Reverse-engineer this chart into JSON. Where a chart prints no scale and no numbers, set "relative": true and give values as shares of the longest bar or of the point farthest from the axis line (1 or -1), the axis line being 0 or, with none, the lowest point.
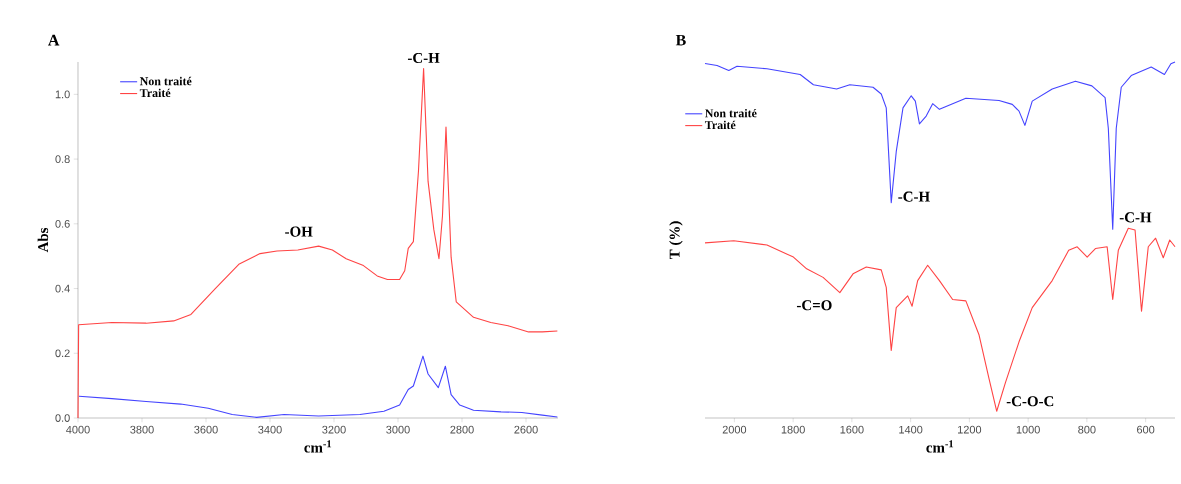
{
  "chart_data": [
    {
      "type": "line",
      "title": "A",
      "xlabel": "cm$^{-1}$",
      "ylabel": "Abs",
      "xlim": [
        4000,
        2500
      ],
      "ylim": [
        0,
        1.1
      ],
      "xticks": [
        4000,
        3800,
        3600,
        3400,
        3200,
        3000,
        2800,
        2600
      ],
      "yticks": [
        {
          "value": 0,
          "label": "0.0"
        },
        {
          "value": 0.2,
          "label": "0.2"
        },
        {
          "value": 0.4,
          "label": "0.4"
        },
        {
          "value": 0.6,
          "label": "0.6"
        },
        {
          "value": 0.8,
          "label": "0.8"
        },
        {
          "value": 1.0,
          "label": "1.0"
        }
      ],
      "legend": "top left",
      "series": [
        {
          "name": "Non traité",
          "color": "#4444ff",
          "x": [
            3997,
            3894,
            3787,
            3679,
            3593,
            3518,
            3442,
            3356,
            3248,
            3119,
            3044,
            2995,
            2968,
            2952,
            2922,
            2906,
            2874,
            2852,
            2834,
            2807,
            2764,
            2678,
            2613,
            2549,
            2502
          ],
          "values": [
            0.067,
            0.06,
            0.051,
            0.043,
            0.03,
            0.011,
            0.002,
            0.011,
            0.006,
            0.011,
            0.021,
            0.04,
            0.088,
            0.099,
            0.191,
            0.136,
            0.094,
            0.16,
            0.072,
            0.04,
            0.024,
            0.019,
            0.017,
            0.009,
            0.003
          ]
        },
        {
          "name": "Traité",
          "color": "#ff4444",
          "x": [
            4000,
            3998,
            3894,
            3787,
            3701,
            3647,
            3571,
            3496,
            3431,
            3378,
            3313,
            3248,
            3205,
            3162,
            3108,
            3065,
            3033,
            2995,
            2979,
            2968,
            2952,
            2936,
            2920,
            2906,
            2888,
            2872,
            2861,
            2850,
            2834,
            2818,
            2764,
            2710,
            2656,
            2592,
            2549,
            2502
          ],
          "values": [
            0.0,
            0.288,
            0.295,
            0.293,
            0.3,
            0.32,
            0.4,
            0.476,
            0.508,
            0.516,
            0.519,
            0.531,
            0.519,
            0.492,
            0.471,
            0.439,
            0.428,
            0.428,
            0.455,
            0.524,
            0.545,
            0.763,
            1.08,
            0.731,
            0.582,
            0.492,
            0.625,
            0.899,
            0.497,
            0.359,
            0.311,
            0.295,
            0.285,
            0.266,
            0.266,
            0.269
          ]
        }
      ],
      "annotations": [
        {
          "text": "-OH",
          "x": 3248,
          "y": 0.531
        },
        {
          "text": "-C-H",
          "x": 2920,
          "y": 1.08
        }
      ]
    },
    {
      "type": "line",
      "title": "B",
      "xlabel": "cm$^{-1}$",
      "ylabel": "T (%)",
      "relative": true,
      "xlim": [
        2100,
        500
      ],
      "xticks": [
        2000,
        1800,
        1600,
        1400,
        1200,
        1000,
        800,
        600
      ],
      "legend": "top left",
      "series": [
        {
          "name": "Non traité",
          "color": "#4444ff",
          "x": [
            2100,
            2059,
            2019,
            1991,
            1889,
            1776,
            1731,
            1652,
            1607,
            1528,
            1500,
            1483,
            1466,
            1449,
            1426,
            1398,
            1384,
            1370,
            1347,
            1325,
            1302,
            1257,
            1212,
            1099,
            1054,
            1031,
            1011,
            986,
            918,
            839,
            783,
            738,
            727,
            712,
            700,
            683,
            649,
            581,
            536,
            514,
            500
          ],
          "values": [
            0.996,
            0.99,
            0.976,
            0.988,
            0.981,
            0.965,
            0.936,
            0.924,
            0.936,
            0.929,
            0.91,
            0.871,
            0.605,
            0.748,
            0.871,
            0.905,
            0.89,
            0.826,
            0.848,
            0.883,
            0.867,
            0.883,
            0.898,
            0.892,
            0.881,
            0.862,
            0.822,
            0.89,
            0.924,
            0.946,
            0.933,
            0.9,
            0.814,
            0.53,
            0.814,
            0.929,
            0.962,
            0.986,
            0.965,
            0.995,
            1.0
          ]
        },
        {
          "name": "Traité",
          "color": "#ff4444",
          "x": [
            2100,
            2002,
            1889,
            1799,
            1754,
            1698,
            1641,
            1596,
            1551,
            1500,
            1483,
            1466,
            1449,
            1410,
            1395,
            1376,
            1342,
            1302,
            1257,
            1212,
            1167,
            1133,
            1107,
            1077,
            1031,
            986,
            918,
            862,
            833,
            799,
            771,
            731,
            712,
            693,
            659,
            636,
            614,
            591,
            566,
            540,
            518,
            500
          ],
          "values": [
            0.492,
            0.498,
            0.486,
            0.452,
            0.419,
            0.395,
            0.352,
            0.405,
            0.424,
            0.416,
            0.367,
            0.19,
            0.31,
            0.343,
            0.314,
            0.386,
            0.429,
            0.386,
            0.333,
            0.329,
            0.233,
            0.11,
            0.019,
            0.1,
            0.214,
            0.31,
            0.386,
            0.471,
            0.481,
            0.452,
            0.476,
            0.481,
            0.333,
            0.471,
            0.533,
            0.528,
            0.3,
            0.481,
            0.505,
            0.45,
            0.5,
            0.481
          ]
        }
      ],
      "annotations": [
        {
          "text": "-C-H",
          "x": 1466,
          "y": 0.605
        },
        {
          "text": "-C-H",
          "x": 712,
          "y": 0.53
        },
        {
          "text": "-C=O",
          "x": 1641,
          "y": 0.352
        },
        {
          "text": "-C-O-C",
          "x": 1107,
          "y": 0.019
        }
      ]
    }
  ]
}
